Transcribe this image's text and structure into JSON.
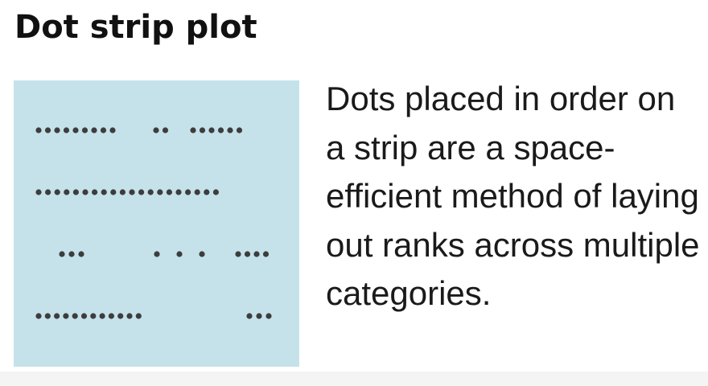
{
  "title": "Dot strip plot",
  "description": "Dots placed in order on a strip are a space-efficient method of laying out ranks across multiple categories.",
  "colors": {
    "panel_background": "#c5e2ea",
    "dot": "#3d3d3d",
    "text": "#1a1a1a"
  },
  "strips": [
    {
      "dots": 17
    },
    {
      "dots": 20
    },
    {
      "dots": 10
    },
    {
      "dots": 14
    }
  ]
}
